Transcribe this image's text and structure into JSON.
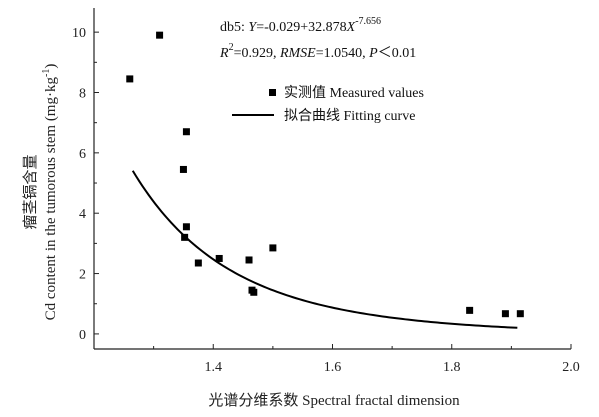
{
  "chart_data": {
    "type": "scatter",
    "xlabel": "光谱分维系数 Spectral fractal dimension",
    "ylabel_cn": "瘤茎镉含量",
    "ylabel_en": "Cd content in the tumorous stem (mg·kg⁻¹)",
    "xlim": [
      1.2,
      2.0
    ],
    "ylim": [
      -0.5,
      10.8
    ],
    "xticks": [
      1.4,
      1.6,
      1.8,
      2.0
    ],
    "xtick_labels": [
      "1.4",
      "1.6",
      "1.8",
      "2.0"
    ],
    "yticks": [
      0,
      2,
      4,
      6,
      8,
      10
    ],
    "ytick_labels": [
      "0",
      "2",
      "4",
      "6",
      "8",
      "10"
    ],
    "equation": {
      "line1": "db5: Y=-0.029+32.878X-7.656",
      "line2": "R2=0.929, RMSE=1.0540, P＜0.01",
      "a": -0.029,
      "b": 32.878,
      "c": -7.656,
      "r2": 0.929,
      "rmse": 1.054
    },
    "legend": {
      "measured": "实测值 Measured values",
      "fitting": "拟合曲线 Fitting curve"
    },
    "series": [
      {
        "kind": "scatter",
        "points": [
          {
            "x": 1.26,
            "y": 8.45
          },
          {
            "x": 1.31,
            "y": 9.9
          },
          {
            "x": 1.35,
            "y": 5.45
          },
          {
            "x": 1.355,
            "y": 6.7
          },
          {
            "x": 1.355,
            "y": 3.55
          },
          {
            "x": 1.352,
            "y": 3.2
          },
          {
            "x": 1.375,
            "y": 2.35
          },
          {
            "x": 1.41,
            "y": 2.5
          },
          {
            "x": 1.46,
            "y": 2.45
          },
          {
            "x": 1.465,
            "y": 1.45
          },
          {
            "x": 1.468,
            "y": 1.38
          },
          {
            "x": 1.5,
            "y": 2.85
          },
          {
            "x": 1.83,
            "y": 0.78
          },
          {
            "x": 1.89,
            "y": 0.67
          },
          {
            "x": 1.915,
            "y": 0.67
          }
        ]
      },
      {
        "kind": "curve",
        "x_range": [
          1.265,
          1.91
        ]
      }
    ],
    "colors": {
      "axis": "#222222",
      "marker": "#000000",
      "curve": "#000000"
    }
  }
}
